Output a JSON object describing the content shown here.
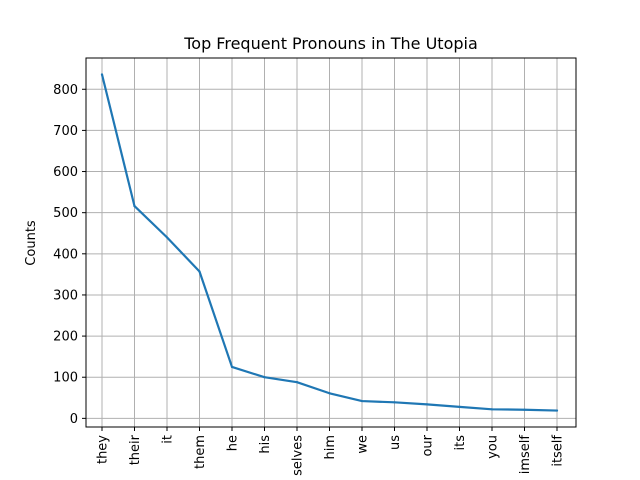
{
  "chart_data": {
    "type": "line",
    "title": "Top Frequent Pronouns in The Utopia",
    "xlabel": "",
    "ylabel": "Counts",
    "categories": [
      "they",
      "their",
      "it",
      "them",
      "he",
      "his",
      "selves",
      "him",
      "we",
      "us",
      "our",
      "its",
      "you",
      "imself",
      "itself"
    ],
    "values": [
      836,
      516,
      440,
      357,
      125,
      100,
      88,
      61,
      42,
      39,
      34,
      28,
      22,
      21,
      19
    ],
    "yticks": [
      0,
      100,
      200,
      300,
      400,
      500,
      600,
      700,
      800
    ],
    "ylim": [
      -21,
      876
    ],
    "grid": true,
    "line_color": "#1f77b4"
  }
}
